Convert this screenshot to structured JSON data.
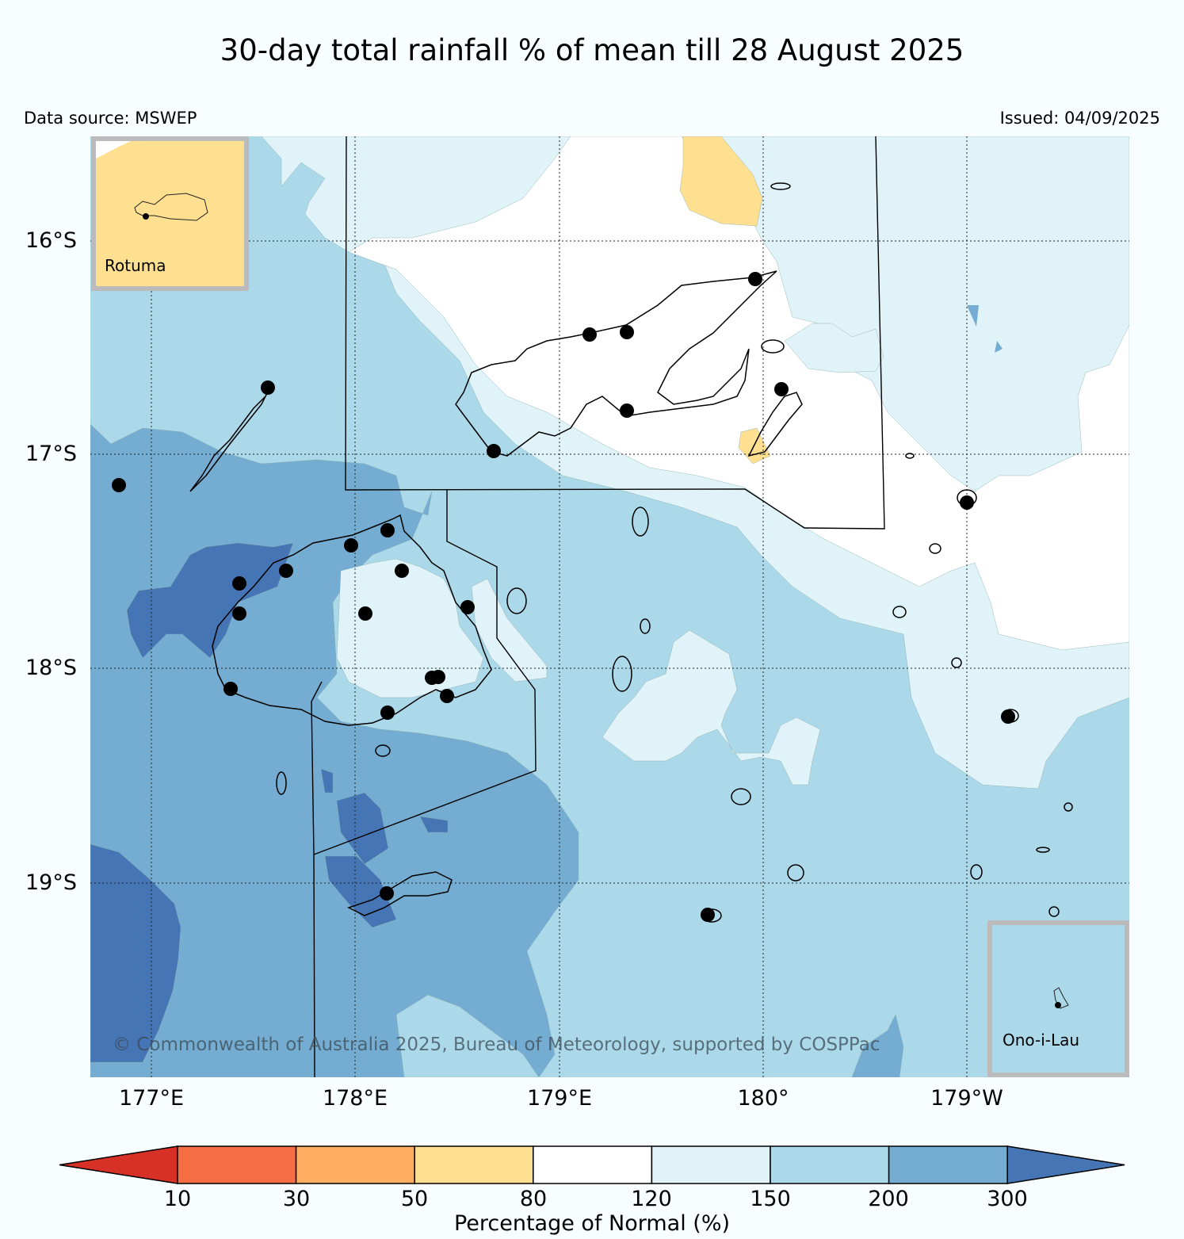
{
  "title": "30-day total rainfall % of mean till 28 August 2025",
  "data_source": "Data source: MSWEP",
  "issued": "Issued: 04/09/2025",
  "latitude_labels": [
    "16°S",
    "17°S",
    "18°S",
    "19°S"
  ],
  "longitude_labels": [
    "177°E",
    "178°E",
    "179°E",
    "180°",
    "179°W"
  ],
  "insets": {
    "rotuma": "Rotuma",
    "ono_i_lau": "Ono-i-Lau"
  },
  "copyright": "© Commonwealth of Australia 2025, Bureau of Meteorology, supported by COSPPac",
  "colorbar": {
    "label": "Percentage of Normal (%)",
    "ticks": [
      "10",
      "30",
      "50",
      "80",
      "120",
      "150",
      "200",
      "300"
    ],
    "bins": [
      {
        "range": "<10",
        "color": "#d73027"
      },
      {
        "range": "10-30",
        "color": "#f46d43"
      },
      {
        "range": "30-50",
        "color": "#fdae61"
      },
      {
        "range": "50-80",
        "color": "#fee090"
      },
      {
        "range": "80-120",
        "color": "#ffffff"
      },
      {
        "range": "120-150",
        "color": "#e0f3f8"
      },
      {
        "range": "150-200",
        "color": "#abd9e9"
      },
      {
        "range": "200-300",
        "color": "#74add1"
      },
      {
        "range": ">300",
        "color": "#4575b4"
      }
    ]
  }
}
